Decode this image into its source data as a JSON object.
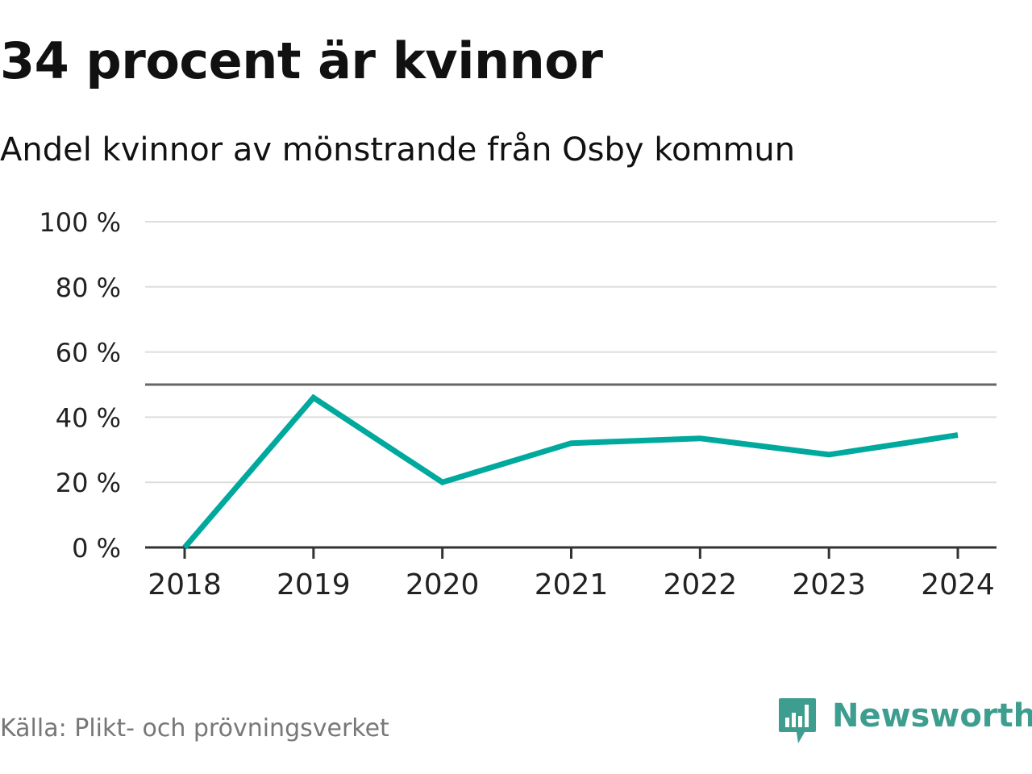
{
  "header": {
    "title": "34 procent är kvinnor",
    "subtitle": "Andel kvinnor av mönstrande från Osby kommun"
  },
  "footer": {
    "source": "Källa: Plikt- och prövningsverket",
    "brand": "Newsworthy"
  },
  "colors": {
    "line": "#00a99d",
    "grid": "#dddddd",
    "reference_line": "#666666",
    "axis": "#333333",
    "tick_label": "#222222",
    "brand": "#3d9d8f",
    "source_text": "#777777"
  },
  "chart_data": {
    "type": "line",
    "x": [
      "2018",
      "2019",
      "2020",
      "2021",
      "2022",
      "2023",
      "2024"
    ],
    "series": [
      {
        "values": [
          0,
          46,
          20,
          32,
          33.5,
          28.5,
          34.5
        ]
      }
    ],
    "ylim": [
      0,
      100
    ],
    "yticks": [
      0,
      20,
      40,
      60,
      80,
      100
    ],
    "ytick_labels": [
      "0 %",
      "20 %",
      "40 %",
      "60 %",
      "80 %",
      "100 %"
    ],
    "reference_line": 50,
    "grid": true,
    "legend": "none"
  }
}
